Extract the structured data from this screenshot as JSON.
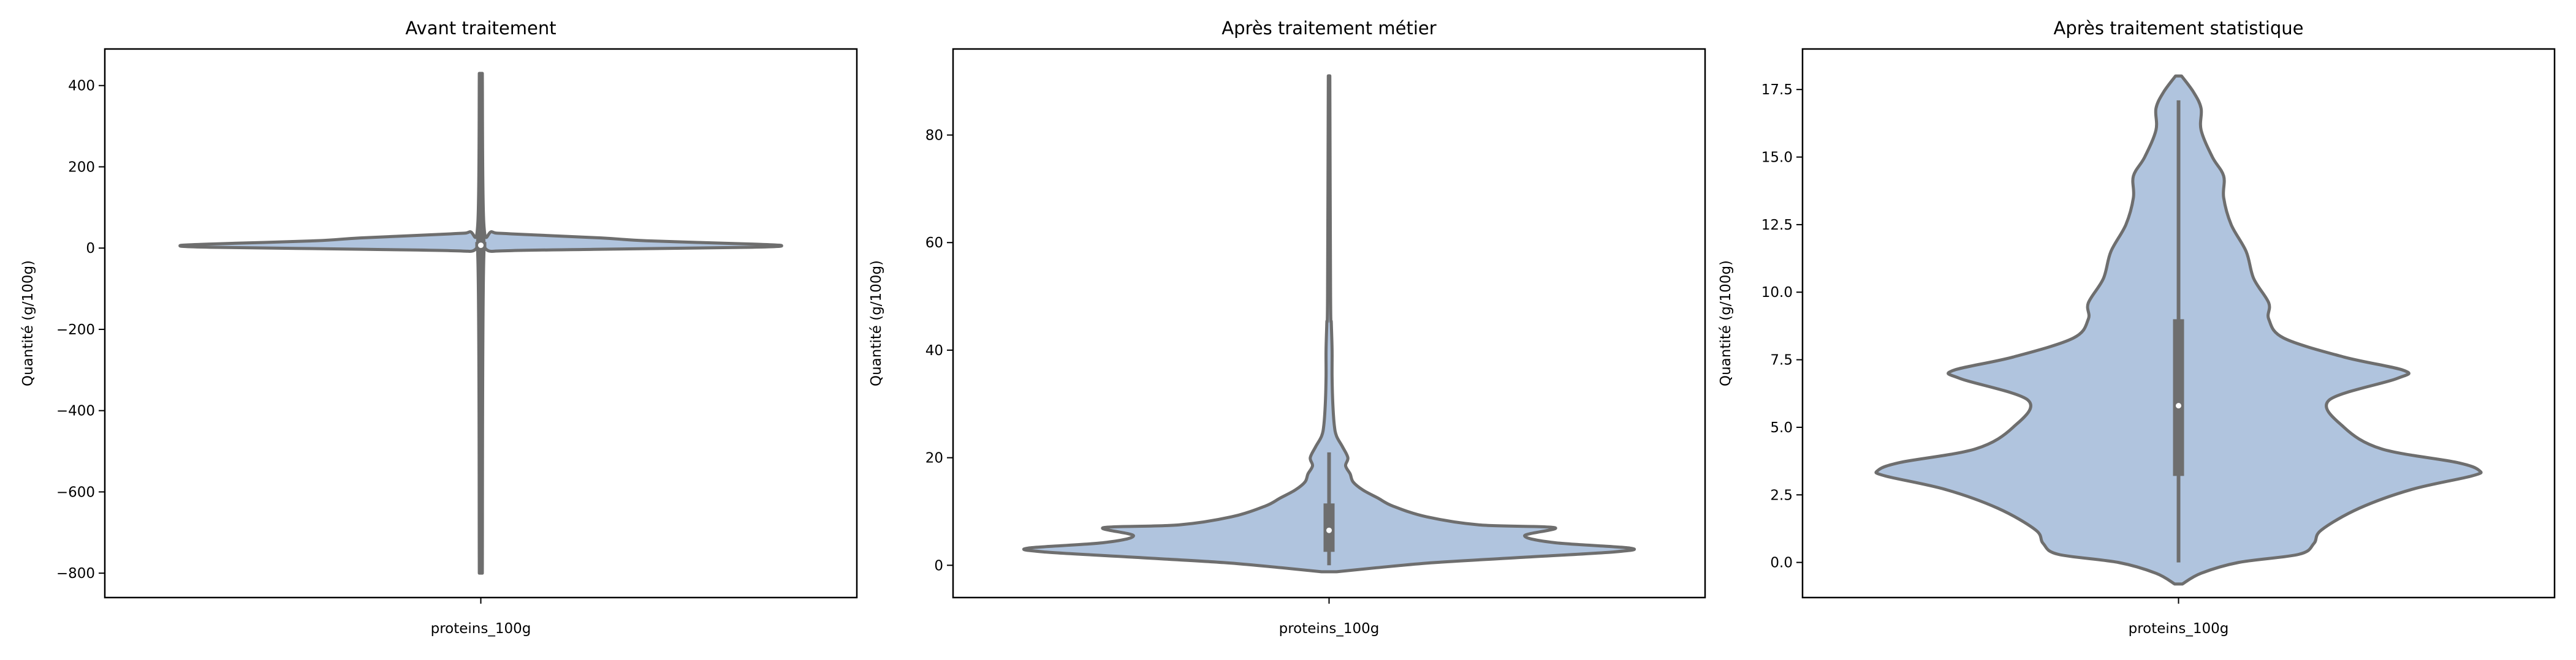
{
  "colors": {
    "violin_fill": "#b0c4de",
    "violin_edge": "#6e6e6e",
    "box": "#6e6e6e",
    "median": "#ffffff"
  },
  "chart_data": [
    {
      "type": "violin",
      "title": "Avant traitement",
      "xlabel": "proteins_100g",
      "ylabel": "Quantité (g/100g)",
      "ylim": [
        -860,
        490
      ],
      "yticks": [
        -800,
        -600,
        -400,
        -200,
        0,
        200,
        400
      ],
      "ytick_labels": [
        "−800",
        "−600",
        "−400",
        "−200",
        "0",
        "200",
        "400"
      ],
      "max_width": 0.4,
      "summary": {
        "min": -800,
        "q1": 1,
        "median": 7,
        "q3": 15,
        "max": 430
      },
      "density": [
        {
          "y": 430,
          "w": 0.002
        },
        {
          "y": 60,
          "w": 0.004
        },
        {
          "y": 40,
          "w": 0.015
        },
        {
          "y": 35,
          "w": 0.04
        },
        {
          "y": 25,
          "w": 0.16
        },
        {
          "y": 18,
          "w": 0.22
        },
        {
          "y": 10,
          "w": 0.36
        },
        {
          "y": 6,
          "w": 0.4
        },
        {
          "y": 2,
          "w": 0.36
        },
        {
          "y": -3,
          "w": 0.15
        },
        {
          "y": -8,
          "w": 0.015
        },
        {
          "y": -20,
          "w": 0.004
        },
        {
          "y": -800,
          "w": 0.002
        }
      ]
    },
    {
      "type": "violin",
      "title": "Après traitement métier",
      "xlabel": "proteins_100g",
      "ylabel": "Quantité (g/100g)",
      "ylim": [
        -6,
        96
      ],
      "yticks": [
        0,
        20,
        40,
        60,
        80
      ],
      "ytick_labels": [
        "0",
        "20",
        "40",
        "60",
        "80"
      ],
      "max_width": 0.4,
      "summary": {
        "min": 0,
        "q1": 2.5,
        "median": 6.5,
        "q3": 11.5,
        "max": 21
      },
      "density": [
        {
          "y": -1.2,
          "w": 0.01
        },
        {
          "y": -0.5,
          "w": 0.06
        },
        {
          "y": 0.5,
          "w": 0.14
        },
        {
          "y": 1.5,
          "w": 0.26
        },
        {
          "y": 2.5,
          "w": 0.38
        },
        {
          "y": 3.2,
          "w": 0.4
        },
        {
          "y": 4.2,
          "w": 0.3
        },
        {
          "y": 5.5,
          "w": 0.26
        },
        {
          "y": 7,
          "w": 0.3
        },
        {
          "y": 7.5,
          "w": 0.2
        },
        {
          "y": 9,
          "w": 0.13
        },
        {
          "y": 11,
          "w": 0.085
        },
        {
          "y": 12.5,
          "w": 0.065
        },
        {
          "y": 14,
          "w": 0.045
        },
        {
          "y": 15.5,
          "w": 0.032
        },
        {
          "y": 17,
          "w": 0.028
        },
        {
          "y": 18.5,
          "w": 0.022
        },
        {
          "y": 20,
          "w": 0.025
        },
        {
          "y": 22,
          "w": 0.018
        },
        {
          "y": 24,
          "w": 0.01
        },
        {
          "y": 26,
          "w": 0.007
        },
        {
          "y": 30,
          "w": 0.005
        },
        {
          "y": 35,
          "w": 0.004
        },
        {
          "y": 40,
          "w": 0.004
        },
        {
          "y": 45,
          "w": 0.003
        },
        {
          "y": 50,
          "w": 0.002
        },
        {
          "y": 91,
          "w": 0.001
        }
      ]
    },
    {
      "type": "violin",
      "title": "Après traitement statistique",
      "xlabel": "proteins_100g",
      "ylabel": "Quantité (g/100g)",
      "ylim": [
        -1.3,
        19.0
      ],
      "yticks": [
        0.0,
        2.5,
        5.0,
        7.5,
        10.0,
        12.5,
        15.0,
        17.5
      ],
      "ytick_labels": [
        "0.0",
        "2.5",
        "5.0",
        "7.5",
        "10.0",
        "12.5",
        "15.0",
        "17.5"
      ],
      "max_width": 0.4,
      "summary": {
        "min": 0.0,
        "q1": 3.2,
        "median": 5.8,
        "q3": 9.0,
        "max": 17.1
      },
      "density": [
        {
          "y": -0.8,
          "w": 0.005
        },
        {
          "y": -0.4,
          "w": 0.03
        },
        {
          "y": 0.0,
          "w": 0.08
        },
        {
          "y": 0.3,
          "w": 0.16
        },
        {
          "y": 0.7,
          "w": 0.18
        },
        {
          "y": 1.2,
          "w": 0.19
        },
        {
          "y": 2.0,
          "w": 0.24
        },
        {
          "y": 2.7,
          "w": 0.31
        },
        {
          "y": 3.2,
          "w": 0.39
        },
        {
          "y": 3.4,
          "w": 0.4
        },
        {
          "y": 3.7,
          "w": 0.37
        },
        {
          "y": 4.2,
          "w": 0.27
        },
        {
          "y": 5.0,
          "w": 0.22
        },
        {
          "y": 6.0,
          "w": 0.2
        },
        {
          "y": 6.8,
          "w": 0.29
        },
        {
          "y": 7.1,
          "w": 0.3
        },
        {
          "y": 7.6,
          "w": 0.22
        },
        {
          "y": 8.3,
          "w": 0.14
        },
        {
          "y": 9.0,
          "w": 0.12
        },
        {
          "y": 9.6,
          "w": 0.12
        },
        {
          "y": 10.5,
          "w": 0.1
        },
        {
          "y": 11.5,
          "w": 0.09
        },
        {
          "y": 12.5,
          "w": 0.07
        },
        {
          "y": 13.5,
          "w": 0.06
        },
        {
          "y": 14.3,
          "w": 0.06
        },
        {
          "y": 15.0,
          "w": 0.045
        },
        {
          "y": 16.0,
          "w": 0.03
        },
        {
          "y": 16.8,
          "w": 0.03
        },
        {
          "y": 17.4,
          "w": 0.02
        },
        {
          "y": 18.0,
          "w": 0.004
        }
      ]
    }
  ]
}
